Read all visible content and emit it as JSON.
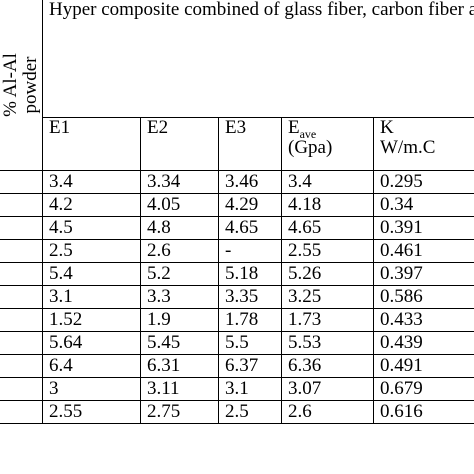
{
  "table": {
    "title": "Hyper composite combined of glass fiber, carbon fiber and",
    "side_label_line1": "% Al-Al",
    "side_label_line2": "powder",
    "headers": {
      "e1": "E1",
      "e2": "E2",
      "e3": "E3",
      "eave_main": "E",
      "eave_sub": "ave",
      "eave_unit": "(Gpa)",
      "k_main": "K",
      "k_unit": "W/m.C"
    },
    "rows": [
      [
        "3.4",
        "3.34",
        "3.46",
        "3.4",
        "0.295"
      ],
      [
        "4.2",
        "4.05",
        "4.29",
        "4.18",
        "0.34"
      ],
      [
        "4.5",
        "4.8",
        "4.65",
        "4.65",
        "0.391"
      ],
      [
        "2.5",
        "2.6",
        "-",
        "2.55",
        "0.461"
      ],
      [
        "5.4",
        "5.2",
        "5.18",
        "5.26",
        "0.397"
      ],
      [
        "3.1",
        "3.3",
        "3.35",
        "3.25",
        "0.586"
      ],
      [
        "1.52",
        "1.9",
        "1.78",
        "1.73",
        "0.433"
      ],
      [
        "5.64",
        "5.45",
        "5.5",
        "5.53",
        "0.439"
      ],
      [
        "6.4",
        "6.31",
        "6.37",
        "6.36",
        "0.491"
      ],
      [
        "3",
        "3.11",
        "3.1",
        "3.07",
        "0.679"
      ],
      [
        "2.55",
        "2.75",
        "2.5",
        "2.6",
        "0.616"
      ]
    ]
  }
}
